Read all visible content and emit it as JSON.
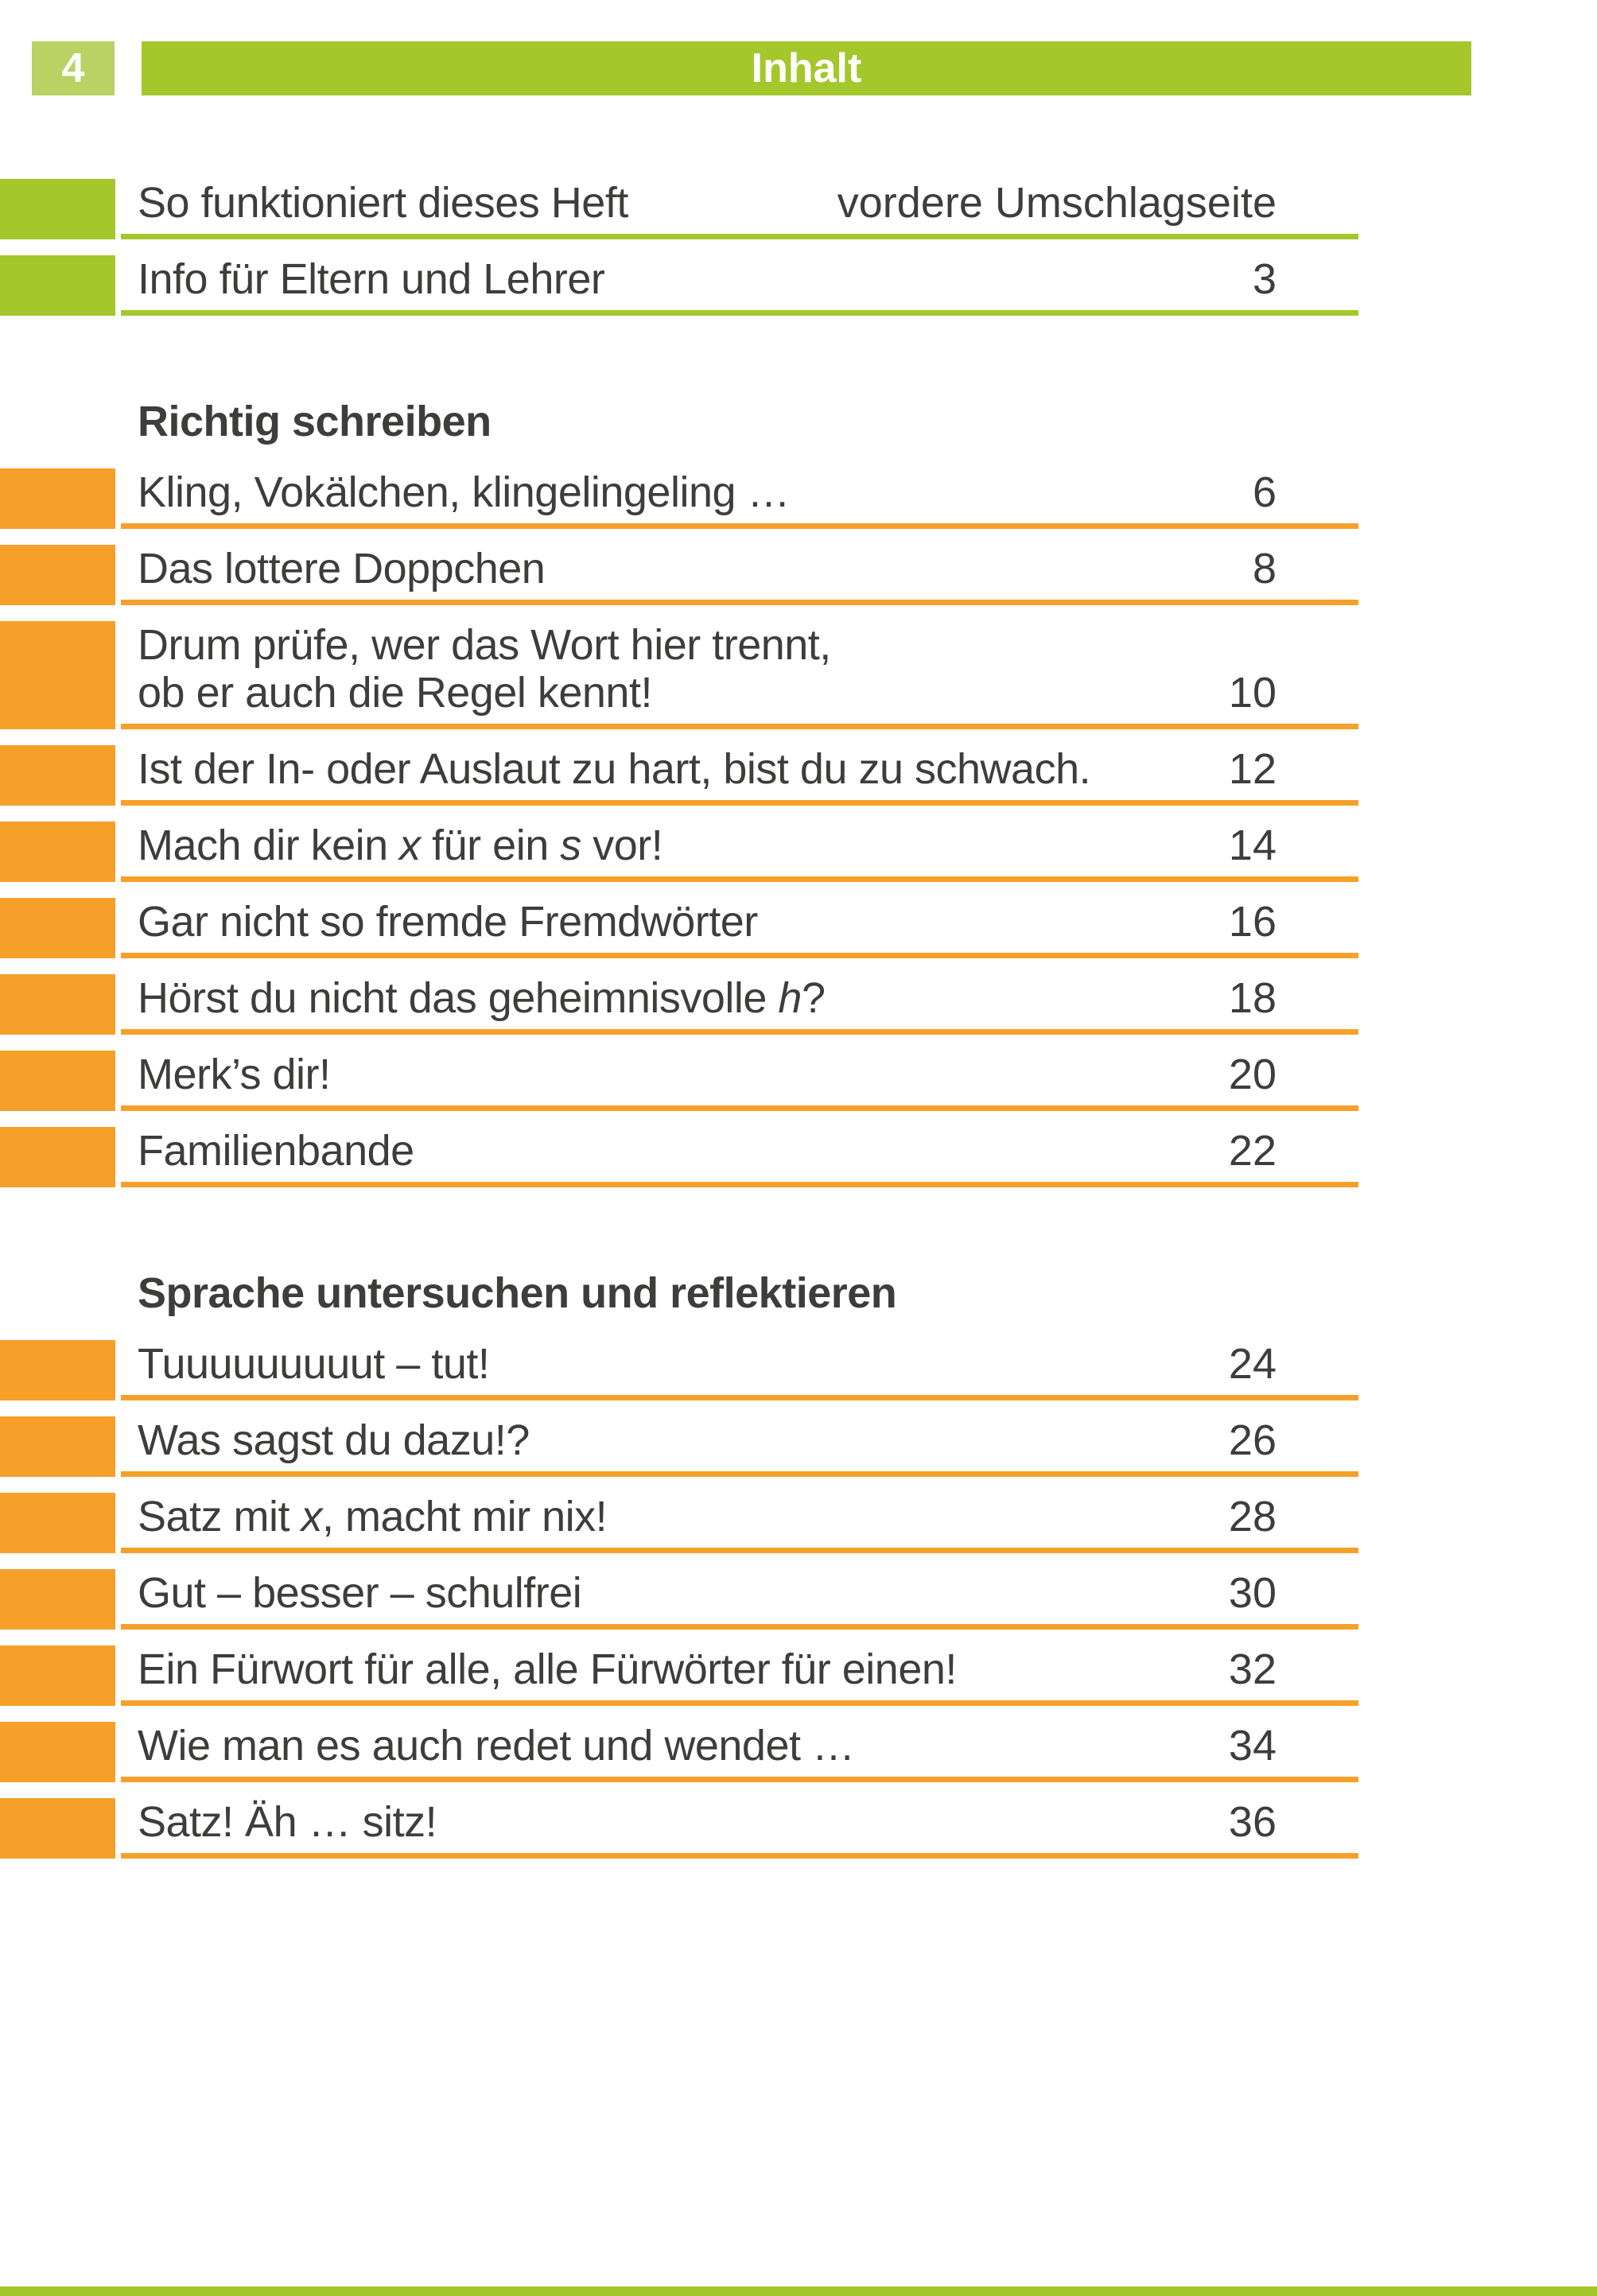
{
  "page": {
    "number": "4",
    "header_title": "Inhalt"
  },
  "colors": {
    "green": "#a4c72c",
    "green_light": "#b9d263",
    "orange": "#f6a02a",
    "text": "#3d3d3c"
  },
  "toc": {
    "front_items": [
      {
        "color": "green",
        "title": [
          {
            "t": "So funktioniert dieses Heft"
          }
        ],
        "page": "vordere Umschlagseite"
      },
      {
        "color": "green",
        "title": [
          {
            "t": "Info für Eltern und Lehrer"
          }
        ],
        "page": "3"
      }
    ],
    "sections": [
      {
        "heading": "Richtig schreiben",
        "color": "orange",
        "items": [
          {
            "title": [
              {
                "t": "Kling, Vokälchen, klingelingeling …"
              }
            ],
            "page": "6"
          },
          {
            "title": [
              {
                "t": "Das lottere Doppchen"
              }
            ],
            "page": "8"
          },
          {
            "title": [
              {
                "t": "Drum prüfe, wer das Wort hier trennt,"
              },
              {
                "br": true
              },
              {
                "t": "ob er auch die Regel kennt!"
              }
            ],
            "page": "10"
          },
          {
            "title": [
              {
                "t": "Ist der In- oder Auslaut zu hart, bist du zu schwach."
              }
            ],
            "page": "12"
          },
          {
            "title": [
              {
                "t": "Mach dir kein "
              },
              {
                "t": "x",
                "i": true
              },
              {
                "t": " für ein "
              },
              {
                "t": "s",
                "i": true
              },
              {
                "t": " vor!"
              }
            ],
            "page": "14"
          },
          {
            "title": [
              {
                "t": "Gar nicht so fremde Fremdwörter"
              }
            ],
            "page": "16"
          },
          {
            "title": [
              {
                "t": "Hörst du nicht das geheimnisvolle "
              },
              {
                "t": "h",
                "i": true
              },
              {
                "t": "?"
              }
            ],
            "page": "18"
          },
          {
            "title": [
              {
                "t": "Merk’s dir!"
              }
            ],
            "page": "20"
          },
          {
            "title": [
              {
                "t": "Familienbande"
              }
            ],
            "page": "22"
          }
        ]
      },
      {
        "heading": "Sprache untersuchen und reflektieren",
        "color": "orange",
        "items": [
          {
            "title": [
              {
                "t": "Tuuuuuuuuut – tut!"
              }
            ],
            "page": "24"
          },
          {
            "title": [
              {
                "t": "Was sagst du dazu!?"
              }
            ],
            "page": "26"
          },
          {
            "title": [
              {
                "t": "Satz mit "
              },
              {
                "t": "x",
                "i": true
              },
              {
                "t": ", macht mir nix!"
              }
            ],
            "page": "28"
          },
          {
            "title": [
              {
                "t": "Gut – besser – schulfrei"
              }
            ],
            "page": "30"
          },
          {
            "title": [
              {
                "t": "Ein Fürwort für alle, alle Fürwörter für einen!"
              }
            ],
            "page": "32"
          },
          {
            "title": [
              {
                "t": "Wie man es auch redet und wendet …"
              }
            ],
            "page": "34"
          },
          {
            "title": [
              {
                "t": "Satz! Äh … sitz!"
              }
            ],
            "page": "36"
          }
        ]
      }
    ]
  }
}
